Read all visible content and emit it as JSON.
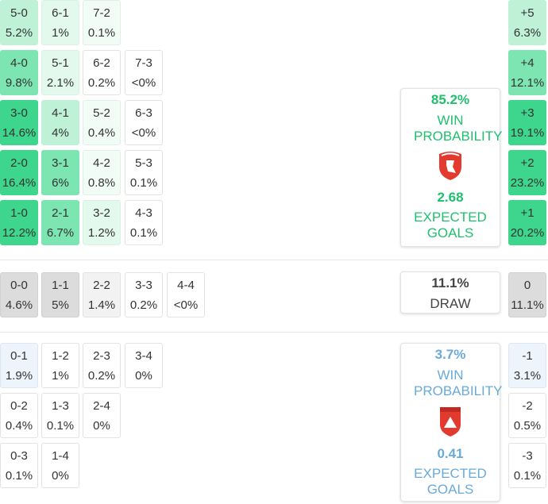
{
  "home": {
    "rows": [
      [
        {
          "score": "5-0",
          "pct": "5.2%"
        },
        {
          "score": "6-1",
          "pct": "1%"
        },
        {
          "score": "7-2",
          "pct": "0.1%"
        }
      ],
      [
        {
          "score": "4-0",
          "pct": "9.8%"
        },
        {
          "score": "5-1",
          "pct": "2.1%"
        },
        {
          "score": "6-2",
          "pct": "0.2%"
        },
        {
          "score": "7-3",
          "pct": "<0%"
        }
      ],
      [
        {
          "score": "3-0",
          "pct": "14.6%"
        },
        {
          "score": "4-1",
          "pct": "4%"
        },
        {
          "score": "5-2",
          "pct": "0.4%"
        },
        {
          "score": "6-3",
          "pct": "<0%"
        }
      ],
      [
        {
          "score": "2-0",
          "pct": "16.4%"
        },
        {
          "score": "3-1",
          "pct": "6%"
        },
        {
          "score": "4-2",
          "pct": "0.8%"
        },
        {
          "score": "5-3",
          "pct": "0.1%"
        }
      ],
      [
        {
          "score": "1-0",
          "pct": "12.2%"
        },
        {
          "score": "2-1",
          "pct": "6.7%"
        },
        {
          "score": "3-2",
          "pct": "1.2%"
        },
        {
          "score": "4-3",
          "pct": "0.1%"
        }
      ]
    ],
    "margins": [
      {
        "score": "+5",
        "pct": "6.3%"
      },
      {
        "score": "+4",
        "pct": "12.1%"
      },
      {
        "score": "+3",
        "pct": "19.1%"
      },
      {
        "score": "+2",
        "pct": "23.2%"
      },
      {
        "score": "+1",
        "pct": "20.2%"
      }
    ],
    "card": {
      "win": "85.2%",
      "win_label": "WIN PROBABILITY",
      "xg": "2.68",
      "xg_label": "EXPECTED GOALS"
    }
  },
  "draw": {
    "rows": [
      [
        {
          "score": "0-0",
          "pct": "4.6%"
        },
        {
          "score": "1-1",
          "pct": "5%"
        },
        {
          "score": "2-2",
          "pct": "1.4%"
        },
        {
          "score": "3-3",
          "pct": "0.2%"
        },
        {
          "score": "4-4",
          "pct": "<0%"
        }
      ]
    ],
    "margins": [
      {
        "score": "0",
        "pct": "11.1%"
      }
    ],
    "card": {
      "pct": "11.1%",
      "label": "DRAW"
    }
  },
  "away": {
    "rows": [
      [
        {
          "score": "0-1",
          "pct": "1.9%"
        },
        {
          "score": "1-2",
          "pct": "1%"
        },
        {
          "score": "2-3",
          "pct": "0.2%"
        },
        {
          "score": "3-4",
          "pct": "0%"
        }
      ],
      [
        {
          "score": "0-2",
          "pct": "0.4%"
        },
        {
          "score": "1-3",
          "pct": "0.1%"
        },
        {
          "score": "2-4",
          "pct": "0%"
        }
      ],
      [
        {
          "score": "0-3",
          "pct": "0.1%"
        },
        {
          "score": "1-4",
          "pct": "0%"
        }
      ]
    ],
    "margins": [
      {
        "score": "-1",
        "pct": "3.1%"
      },
      {
        "score": "-2",
        "pct": "0.5%"
      },
      {
        "score": "-3",
        "pct": "0.1%"
      }
    ],
    "card": {
      "win": "3.7%",
      "win_label": "WIN PROBABILITY",
      "xg": "0.41",
      "xg_label": "EXPECTED GOALS"
    }
  }
}
